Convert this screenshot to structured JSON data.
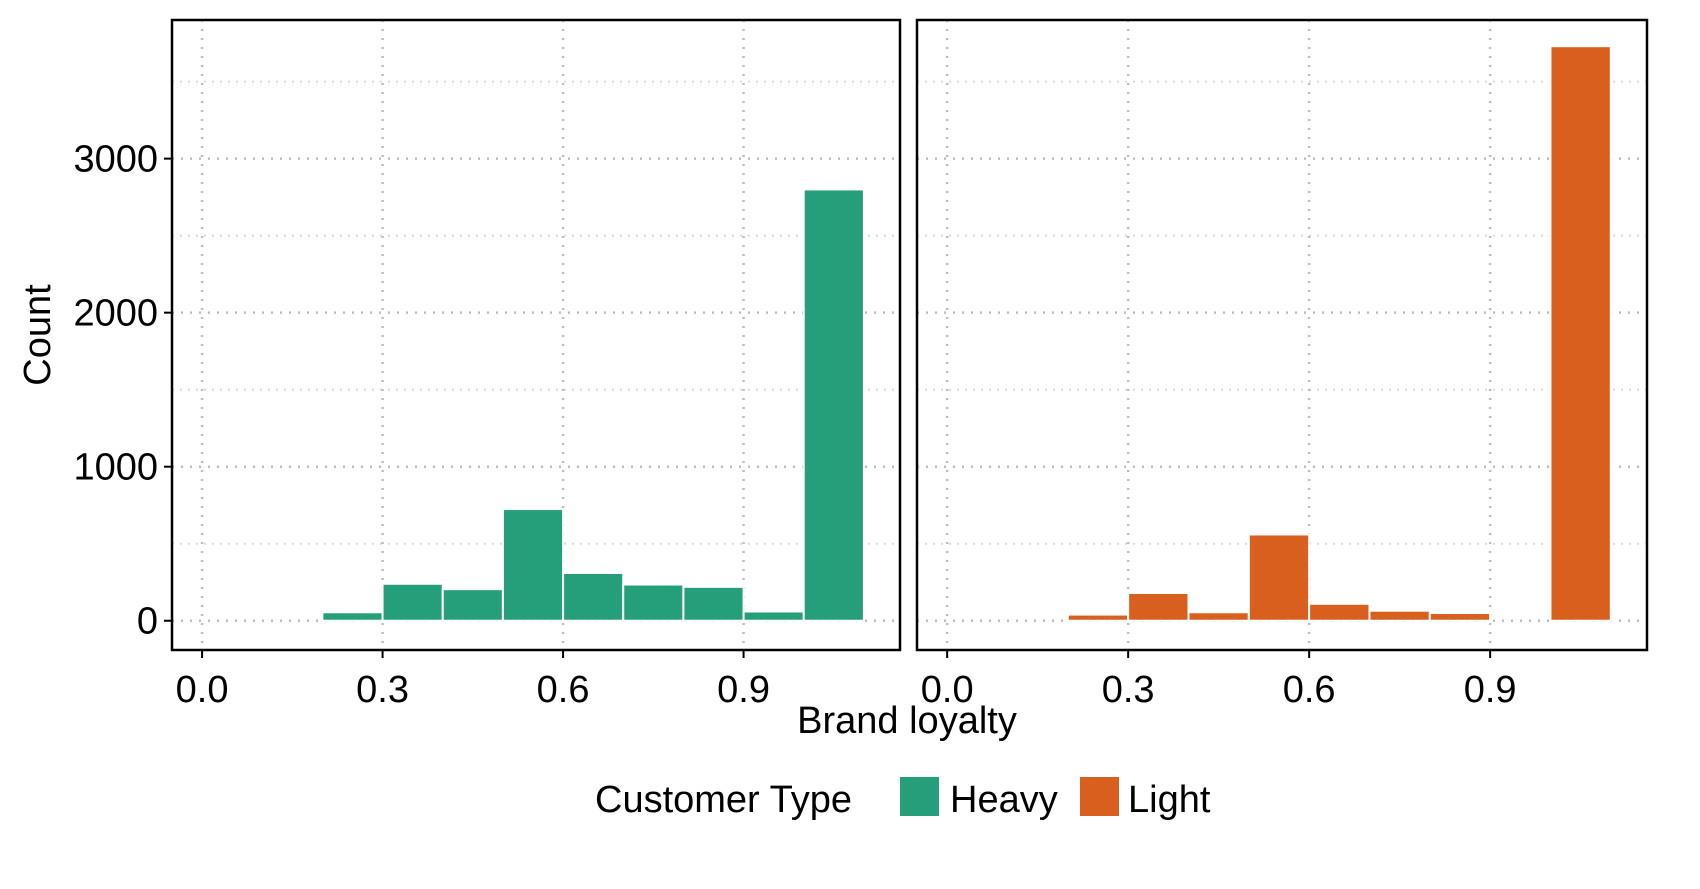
{
  "chart_data": {
    "type": "bar",
    "chart_kind": "faceted histogram",
    "xlabel": "Brand loyalty",
    "ylabel": "Count",
    "x_ticks": [
      "0.0",
      "0.3",
      "0.6",
      "0.9"
    ],
    "x_tick_values": [
      0.0,
      0.3,
      0.6,
      0.9
    ],
    "y_ticks": [
      "0",
      "1000",
      "2000",
      "3000"
    ],
    "y_tick_values": [
      0,
      1000,
      2000,
      3000
    ],
    "xlim": [
      -0.05,
      1.16
    ],
    "ylim": [
      -190,
      3900
    ],
    "grid": true,
    "bin_width": 0.1,
    "legend": {
      "title": "Customer Type",
      "position": "bottom",
      "entries": [
        {
          "label": "Heavy",
          "color": "#259f7a"
        },
        {
          "label": "Light",
          "color": "#d95f1e"
        }
      ]
    },
    "series": [
      {
        "name": "Heavy",
        "color": "#259f7a",
        "bins": [
          {
            "x0": 0.2,
            "x1": 0.3,
            "count": 55
          },
          {
            "x0": 0.3,
            "x1": 0.4,
            "count": 240
          },
          {
            "x0": 0.4,
            "x1": 0.5,
            "count": 205
          },
          {
            "x0": 0.5,
            "x1": 0.6,
            "count": 725
          },
          {
            "x0": 0.6,
            "x1": 0.7,
            "count": 310
          },
          {
            "x0": 0.7,
            "x1": 0.8,
            "count": 235
          },
          {
            "x0": 0.8,
            "x1": 0.9,
            "count": 220
          },
          {
            "x0": 0.9,
            "x1": 1.0,
            "count": 60
          },
          {
            "x0": 1.0,
            "x1": 1.1,
            "count": 2800
          }
        ]
      },
      {
        "name": "Light",
        "color": "#d95f1e",
        "bins": [
          {
            "x0": 0.2,
            "x1": 0.3,
            "count": 40
          },
          {
            "x0": 0.3,
            "x1": 0.4,
            "count": 180
          },
          {
            "x0": 0.4,
            "x1": 0.5,
            "count": 55
          },
          {
            "x0": 0.5,
            "x1": 0.6,
            "count": 560
          },
          {
            "x0": 0.6,
            "x1": 0.7,
            "count": 110
          },
          {
            "x0": 0.7,
            "x1": 0.8,
            "count": 65
          },
          {
            "x0": 0.8,
            "x1": 0.9,
            "count": 50
          },
          {
            "x0": 0.9,
            "x1": 1.0,
            "count": 0
          },
          {
            "x0": 1.0,
            "x1": 1.1,
            "count": 3730
          }
        ]
      }
    ]
  }
}
